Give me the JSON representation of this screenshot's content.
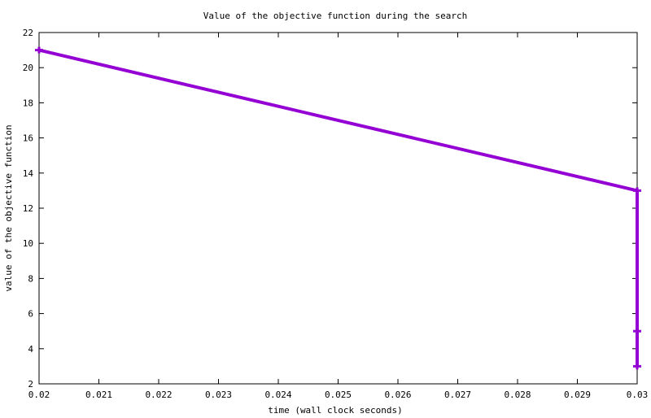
{
  "chart_data": {
    "type": "line",
    "title": "Value of the objective function during the search",
    "xlabel": "time (wall clock seconds)",
    "ylabel": "value of the objective function",
    "xlim": [
      0.02,
      0.03
    ],
    "ylim": [
      2,
      22
    ],
    "xticks": [
      "0.02",
      "0.021",
      "0.022",
      "0.023",
      "0.024",
      "0.025",
      "0.026",
      "0.027",
      "0.028",
      "0.029",
      "0.03"
    ],
    "yticks": [
      "2",
      "4",
      "6",
      "8",
      "10",
      "12",
      "14",
      "16",
      "18",
      "20",
      "22"
    ],
    "grid": false,
    "series": [
      {
        "color": "#9400d3",
        "marker": "plus",
        "x": [
          0.02,
          0.03,
          0.03,
          0.03
        ],
        "y": [
          21,
          13,
          5,
          3
        ]
      }
    ]
  }
}
